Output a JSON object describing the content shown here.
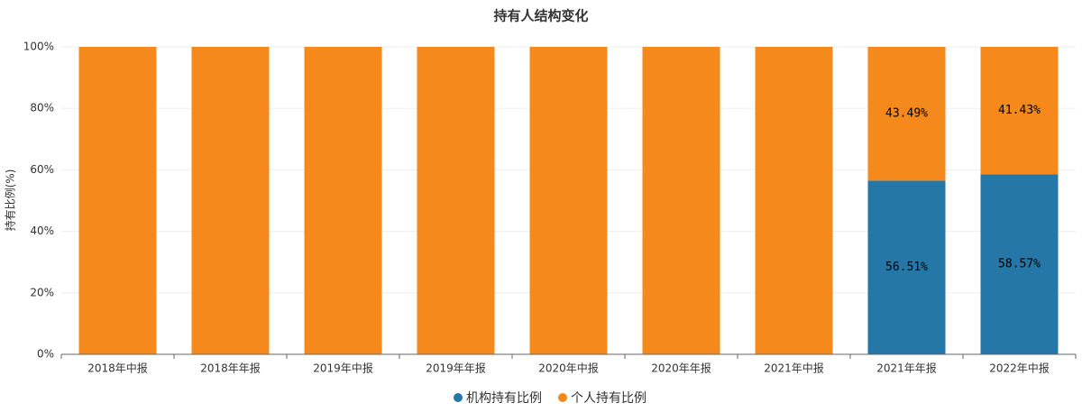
{
  "chart_data": {
    "type": "stacked_bar",
    "title": "持有人结构变化",
    "ylabel": "持有比例(%)",
    "categories": [
      "2018年中报",
      "2018年年报",
      "2019年中报",
      "2019年年报",
      "2020年中报",
      "2020年年报",
      "2021年中报",
      "2021年年报",
      "2022年中报"
    ],
    "series": [
      {
        "name": "机构持有比例",
        "color": "#2477a6",
        "values": [
          0,
          0,
          0,
          0,
          0,
          0,
          0,
          56.51,
          58.57
        ],
        "value_labels": [
          null,
          null,
          null,
          null,
          null,
          null,
          null,
          "56.51%",
          "58.57%"
        ]
      },
      {
        "name": "个人持有比例",
        "color": "#f5891b",
        "values": [
          100,
          100,
          100,
          100,
          100,
          100,
          100,
          43.49,
          41.43
        ],
        "value_labels": [
          null,
          null,
          null,
          null,
          null,
          null,
          null,
          "43.49%",
          "41.43%"
        ]
      }
    ],
    "ylim": [
      0,
      100
    ],
    "yticks": [
      {
        "value": 0,
        "label": "0%"
      },
      {
        "value": 20,
        "label": "20%"
      },
      {
        "value": 40,
        "label": "40%"
      },
      {
        "value": 60,
        "label": "60%"
      },
      {
        "value": 80,
        "label": "80%"
      },
      {
        "value": 100,
        "label": "100%"
      }
    ],
    "grid": true,
    "legend": "bottom"
  }
}
